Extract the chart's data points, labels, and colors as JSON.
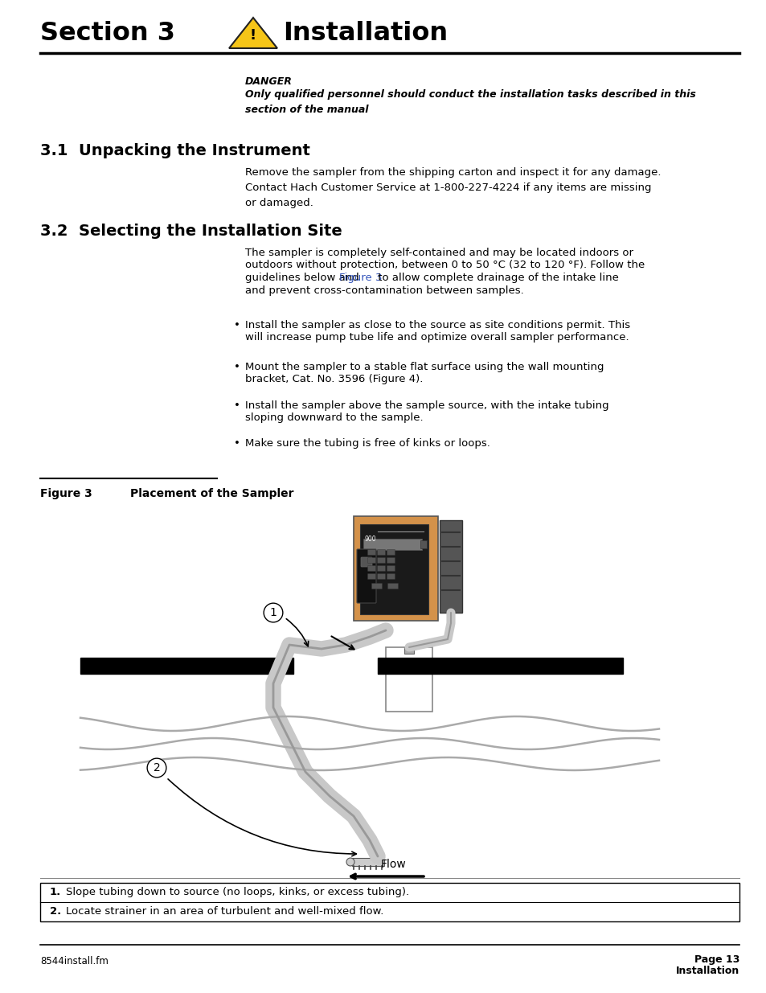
{
  "bg_color": "#ffffff",
  "header_section": "Section 3",
  "header_title": "Installation",
  "danger_label": "DANGER",
  "danger_text": "Only qualified personnel should conduct the installation tasks described in this\nsection of the manual",
  "s31_heading": "3.1  Unpacking the Instrument",
  "s31_body": "Remove the sampler from the shipping carton and inspect it for any damage.\nContact Hach Customer Service at 1-800-227-4224 if any items are missing\nor damaged.",
  "s32_heading": "3.2  Selecting the Installation Site",
  "s32_line1": "The sampler is completely self-contained and may be located indoors or",
  "s32_line2": "outdoors without protection, between 0 to 50 °C (32 to 120 °F). Follow the",
  "s32_line3a": "guidelines below and ",
  "s32_line3b": "Figure 3",
  "s32_line3c": " to allow complete drainage of the intake line",
  "s32_line4": "and prevent cross-contamination between samples.",
  "bullets": [
    [
      "Install the sampler as close to the source as site conditions permit. This",
      "will increase pump tube life and optimize overall sampler performance."
    ],
    [
      "Mount the sampler to a stable flat surface using the wall mounting",
      "bracket, Cat. No. 3596 (Figure 4)."
    ],
    [
      "Install the sampler above the sample source, with the intake tubing",
      "sloping downward to the sample."
    ],
    [
      "Make sure the tubing is free of kinks or loops."
    ]
  ],
  "fig_label": "Figure 3",
  "fig_title": "Placement of the Sampler",
  "table_row1_num": "1.",
  "table_row1_text": "Slope tubing down to source (no loops, kinks, or excess tubing).",
  "table_row2_num": "2.",
  "table_row2_text": "Locate strainer in an area of turbulent and well-mixed flow.",
  "footer_left": "8544install.fm",
  "footer_right1": "Page 13",
  "footer_right2": "Installation",
  "link_color": "#3355bb",
  "orange_color": "#D4924A",
  "black_color": "#1a1a1a",
  "dark_gray": "#444444",
  "med_gray": "#888888",
  "light_gray": "#C8C8C8",
  "tube_gray": "#BBBBBB"
}
